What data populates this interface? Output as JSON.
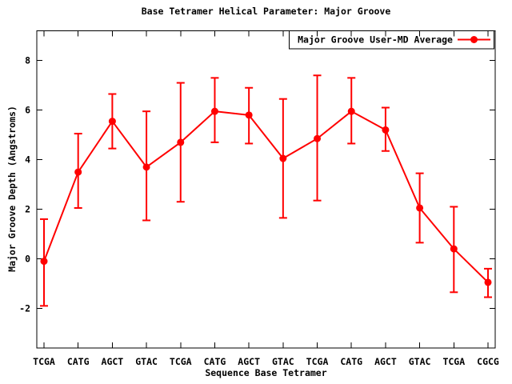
{
  "window": {
    "background": "#ffffff"
  },
  "chart_data": {
    "type": "line",
    "title": "Base Tetramer Helical Parameter: Major Groove",
    "xlabel": "Sequence Base Tetramer",
    "ylabel": "Major Groove Depth (Angstroms)",
    "categories": [
      "TCGA",
      "CATG",
      "AGCT",
      "GTAC",
      "TCGA",
      "CATG",
      "AGCT",
      "GTAC",
      "TCGA",
      "CATG",
      "AGCT",
      "GTAC",
      "TCGA",
      "CGCG"
    ],
    "series": [
      {
        "name": "Major Groove User-MD Average",
        "color": "#ff0000",
        "marker": "filled-circle",
        "error_bars": true,
        "values": [
          -0.1,
          3.5,
          5.55,
          3.7,
          4.7,
          5.95,
          5.8,
          4.05,
          4.85,
          5.95,
          5.2,
          2.05,
          0.4,
          -0.95
        ],
        "err_high": [
          1.6,
          5.05,
          6.65,
          5.95,
          7.1,
          7.3,
          6.9,
          6.45,
          7.4,
          7.3,
          6.1,
          3.45,
          2.1,
          -0.4
        ],
        "err_low": [
          -1.9,
          2.05,
          4.45,
          1.55,
          2.3,
          4.7,
          4.65,
          1.65,
          2.35,
          4.65,
          4.35,
          0.65,
          -1.35,
          -1.55
        ]
      }
    ],
    "ylim": [
      -3.6,
      9.2
    ],
    "yticks": [
      -2,
      0,
      2,
      4,
      6,
      8
    ],
    "grid": false,
    "legend_position": "top-right-inside",
    "legend_border": true,
    "axis_color": "#000000",
    "background": "#ffffff"
  }
}
